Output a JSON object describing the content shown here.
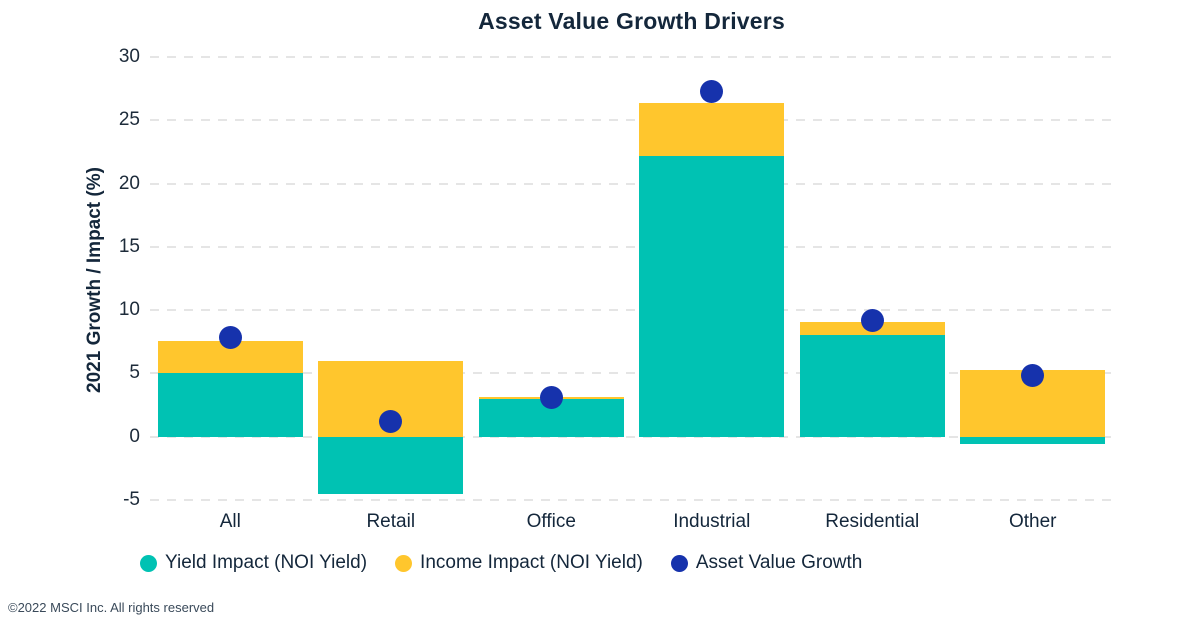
{
  "page": {
    "background": "#FFFFFF"
  },
  "chart_data": {
    "type": "bar",
    "subtype": "stacked-bars-with-scatter-dots",
    "title": "Asset Value Growth Drivers",
    "xlabel": "",
    "ylabel": "2021 Growth / Impact (%)",
    "categories": [
      "All",
      "Retail",
      "Office",
      "Industrial",
      "Residential",
      "Other"
    ],
    "series": [
      {
        "name": "Yield Impact (NOI Yield)",
        "kind": "stacked-bar",
        "color": "#00C2B3",
        "values": [
          5.0,
          -4.5,
          3.0,
          22.2,
          8.0,
          -0.6
        ]
      },
      {
        "name": "Income Impact (NOI Yield)",
        "kind": "stacked-bar",
        "color": "#FFC62D",
        "values": [
          2.6,
          6.0,
          0.1,
          4.2,
          1.1,
          5.3
        ]
      },
      {
        "name": "Asset Value Growth",
        "kind": "scatter-dot",
        "color": "#1632AC",
        "values": [
          7.8,
          1.2,
          3.1,
          27.3,
          9.2,
          4.8
        ]
      }
    ],
    "ylim": [
      -5,
      30
    ],
    "yticks": [
      30,
      25,
      20,
      15,
      10,
      5,
      0,
      -5
    ],
    "grid": "horizontal-dashed",
    "gridline_color": "#E5E5E5",
    "legend_position": "bottom"
  },
  "colors": {
    "title_text": "#14273B",
    "tick_text": "#1D2B3A",
    "footer_text": "#3A4A5A"
  },
  "footer": {
    "copyright": "©2022 MSCI Inc. All rights reserved"
  }
}
